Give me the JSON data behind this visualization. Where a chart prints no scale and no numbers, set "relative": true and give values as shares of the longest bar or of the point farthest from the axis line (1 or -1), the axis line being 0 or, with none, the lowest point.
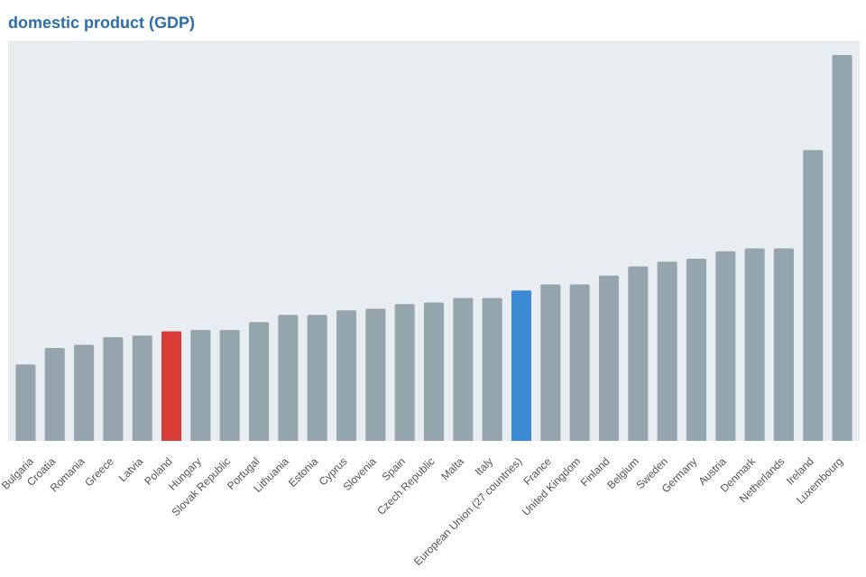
{
  "chart_data": {
    "type": "bar",
    "title": "domestic product (GDP)",
    "relative": true,
    "categories": [
      "Bulgaria",
      "Croatia",
      "Romania",
      "Greece",
      "Latvia",
      "Poland",
      "Hungary",
      "Slovak Republic",
      "Portugal",
      "Lithuania",
      "Estonia",
      "Cyprus",
      "Slovenia",
      "Spain",
      "Czech Republic",
      "Malta",
      "Italy",
      "European Union (27 countries)",
      "France",
      "United Kingdom",
      "Finland",
      "Belgium",
      "Sweden",
      "Germany",
      "Austria",
      "Denmark",
      "Netherlands",
      "Ireland",
      "Luxembourg"
    ],
    "values": [
      0.196,
      0.239,
      0.247,
      0.267,
      0.271,
      0.282,
      0.286,
      0.286,
      0.306,
      0.325,
      0.325,
      0.337,
      0.341,
      0.353,
      0.357,
      0.369,
      0.369,
      0.388,
      0.404,
      0.404,
      0.427,
      0.451,
      0.463,
      0.471,
      0.49,
      0.498,
      0.498,
      0.753,
      1
    ],
    "colors": [
      "#95a5ae",
      "#95a5ae",
      "#95a5ae",
      "#95a5ae",
      "#95a5ae",
      "#d63b36",
      "#95a5ae",
      "#95a5ae",
      "#95a5ae",
      "#95a5ae",
      "#95a5ae",
      "#95a5ae",
      "#95a5ae",
      "#95a5ae",
      "#95a5ae",
      "#95a5ae",
      "#95a5ae",
      "#3a8ad4",
      "#95a5ae",
      "#95a5ae",
      "#95a5ae",
      "#95a5ae",
      "#95a5ae",
      "#95a5ae",
      "#95a5ae",
      "#95a5ae",
      "#95a5ae",
      "#95a5ae",
      "#95a5ae"
    ],
    "grid": false
  }
}
